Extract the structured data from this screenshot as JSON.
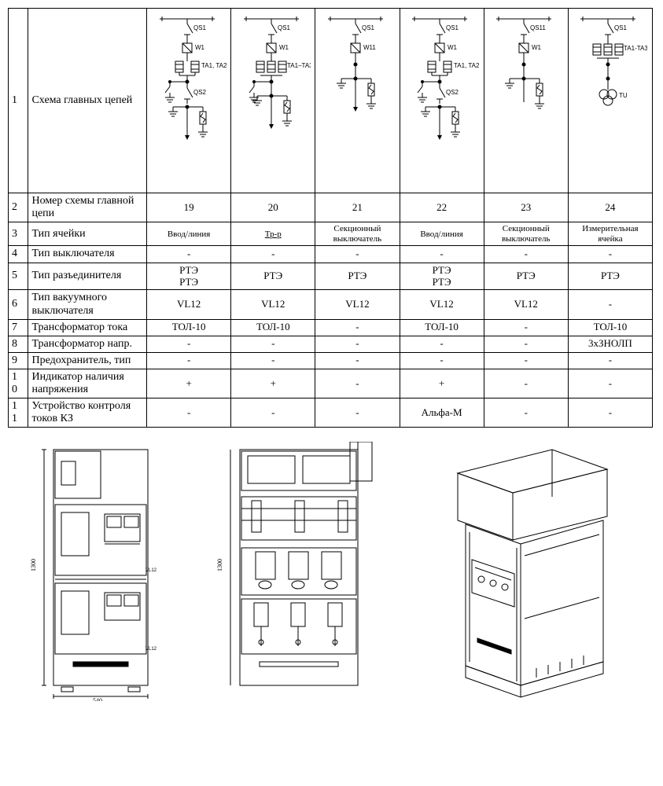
{
  "columns": 6,
  "diag_labels": {
    "qs1": "QS1",
    "qs11": "QS11",
    "qs2": "QS2",
    "w1": "W1",
    "w11": "W11",
    "ta12": "TA1, TA21",
    "ta13": "TA1–TA3",
    "ta1_3": "TA1-TA3",
    "tu": "TU"
  },
  "rows": [
    {
      "num": "1",
      "label": "Схема главных цепей",
      "diagrams": true
    },
    {
      "num": "2",
      "label": "Номер схемы главной цепи",
      "values": [
        "19",
        "20",
        "21",
        "22",
        "23",
        "24"
      ]
    },
    {
      "num": "3",
      "label": "Тип ячейки",
      "small": true,
      "values": [
        "Ввод/линия",
        "Тр-р",
        "Секционный выключатель",
        "Ввод/линия",
        "Секционный выключатель",
        "Измерительная ячейка"
      ],
      "underline": [
        false,
        true,
        false,
        false,
        false,
        false
      ]
    },
    {
      "num": "4",
      "label": "Тип  выключателя",
      "values": [
        "-",
        "-",
        "-",
        "-",
        "-",
        "-"
      ]
    },
    {
      "num": "5",
      "label": "Тип  разъединителя",
      "values": [
        "РТЭ\nРТЭ",
        "РТЭ",
        "РТЭ",
        "РТЭ\nРТЭ",
        "РТЭ",
        "РТЭ"
      ]
    },
    {
      "num": "6",
      "label": "Тип  вакуумного выключателя",
      "values": [
        "VL12",
        "VL12",
        "VL12",
        "VL12",
        "VL12",
        "-"
      ]
    },
    {
      "num": "7",
      "label": "Трансформатор тока",
      "values": [
        "ТОЛ-10",
        "ТОЛ-10",
        "-",
        "ТОЛ-10",
        "-",
        "ТОЛ-10"
      ]
    },
    {
      "num": "8",
      "label": "Трансформатор напр.",
      "values": [
        "-",
        "-",
        "-",
        "-",
        "-",
        "3хЗНОЛП"
      ]
    },
    {
      "num": "9",
      "label": "Предохранитель, тип",
      "values": [
        "-",
        "-",
        "-",
        "-",
        "-",
        "-"
      ]
    },
    {
      "num": "10",
      "label": "Индикатор наличия напряжения",
      "values": [
        "+",
        "+",
        "-",
        "+",
        "-",
        "-"
      ]
    },
    {
      "num": "11",
      "label": "Устройство контроля токов КЗ",
      "values": [
        "-",
        "-",
        "-",
        "Альфа-М",
        "-",
        "-"
      ]
    }
  ],
  "style": {
    "border_color": "#000000",
    "background": "#ffffff",
    "font_family": "Times New Roman",
    "base_fontsize": 14,
    "small_fontsize": 11
  }
}
